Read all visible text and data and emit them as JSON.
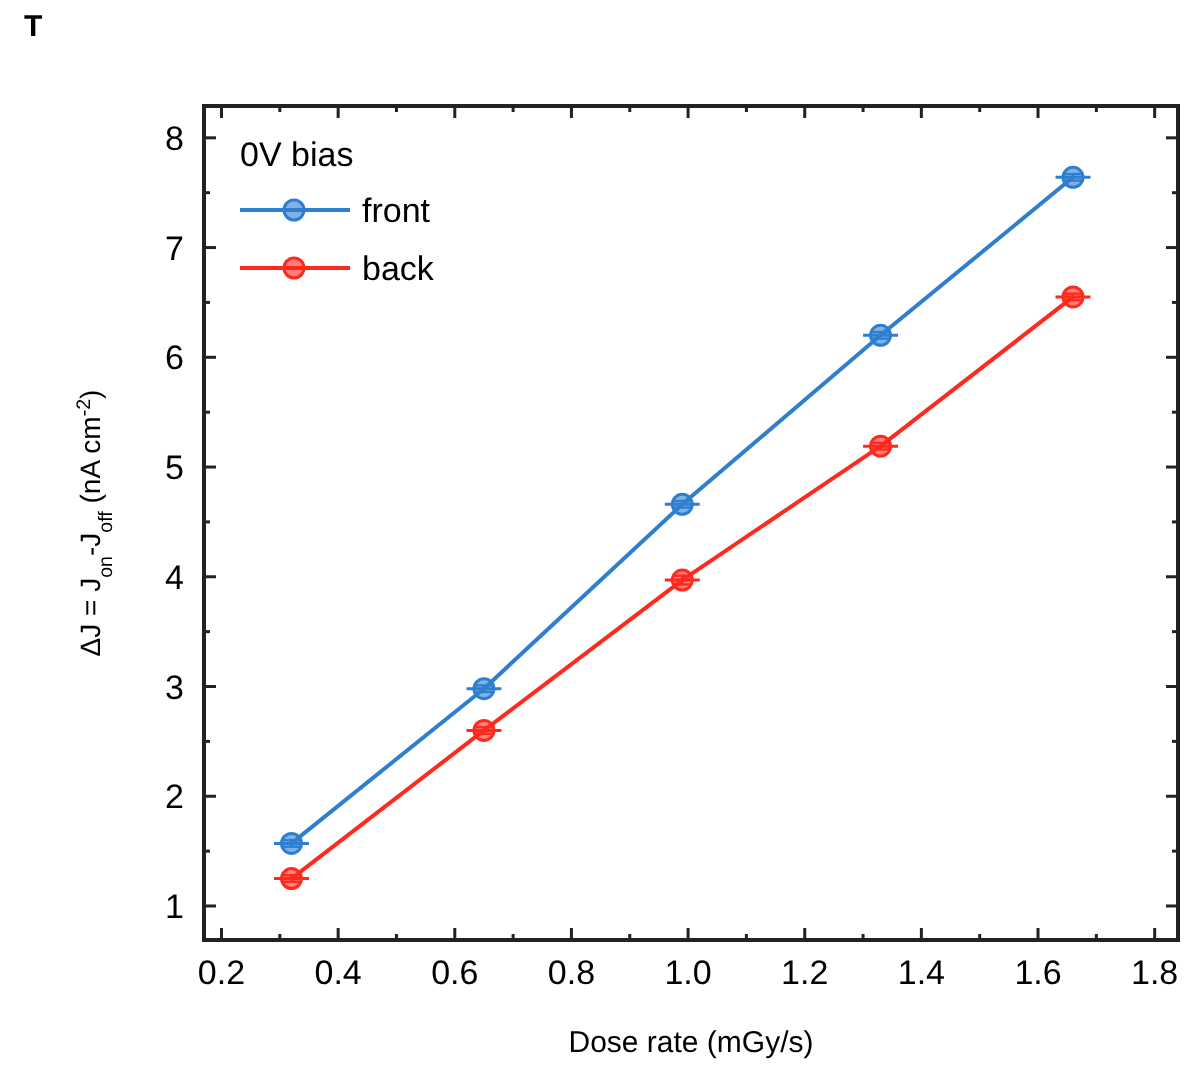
{
  "chart_data": {
    "type": "line",
    "title": "T",
    "xlabel": "Dose rate (mGy/s)",
    "ylabel": "ΔJ = J$_{on}$-J$_{off}$ (nA cm$^{-2}$)",
    "legend_title": "0V bias",
    "legend": "top left",
    "marker": "circle",
    "line_style": "solid",
    "x": [
      0.32,
      0.65,
      0.99,
      1.33,
      1.66
    ],
    "series": [
      {
        "name": "front",
        "color": "#2f7fd0",
        "values": [
          1.57,
          2.98,
          4.66,
          6.2,
          7.64
        ],
        "errors": [
          0.03,
          0.03,
          0.03,
          0.03,
          0.03
        ],
        "xerrors": [
          0.03,
          0.03,
          0.03,
          0.03,
          0.03
        ]
      },
      {
        "name": "back",
        "color": "#ff2a1e",
        "values": [
          1.25,
          2.6,
          3.97,
          5.19,
          6.55
        ],
        "errors": [
          0.03,
          0.03,
          0.04,
          0.03,
          0.03
        ],
        "xerrors": [
          0.03,
          0.03,
          0.03,
          0.03,
          0.03
        ]
      }
    ],
    "xlim": [
      0.17,
      1.84
    ],
    "ylim": [
      0.69,
      8.29
    ],
    "xticks": [
      {
        "value": 0.2,
        "label": "0.2"
      },
      {
        "value": 0.3,
        "label": null
      },
      {
        "value": 0.4,
        "label": "0.4"
      },
      {
        "value": 0.5,
        "label": null
      },
      {
        "value": 0.6,
        "label": "0.6"
      },
      {
        "value": 0.7,
        "label": null
      },
      {
        "value": 0.8,
        "label": "0.8"
      },
      {
        "value": 0.9,
        "label": null
      },
      {
        "value": 1.0,
        "label": "1.0"
      },
      {
        "value": 1.1,
        "label": null
      },
      {
        "value": 1.2,
        "label": "1.2"
      },
      {
        "value": 1.3,
        "label": null
      },
      {
        "value": 1.4,
        "label": "1.4"
      },
      {
        "value": 1.5,
        "label": null
      },
      {
        "value": 1.6,
        "label": "1.6"
      },
      {
        "value": 1.7,
        "label": null
      },
      {
        "value": 1.8,
        "label": "1.8"
      }
    ],
    "yticks": [
      1,
      {
        "value": 1.5,
        "label": null
      },
      2,
      {
        "value": 2.5,
        "label": null
      },
      3,
      {
        "value": 3.5,
        "label": null
      },
      4,
      {
        "value": 4.5,
        "label": null
      },
      5,
      {
        "value": 5.5,
        "label": null
      },
      6,
      {
        "value": 6.5,
        "label": null
      },
      7,
      {
        "value": 7.5,
        "label": null
      },
      8
    ],
    "grid": false
  }
}
